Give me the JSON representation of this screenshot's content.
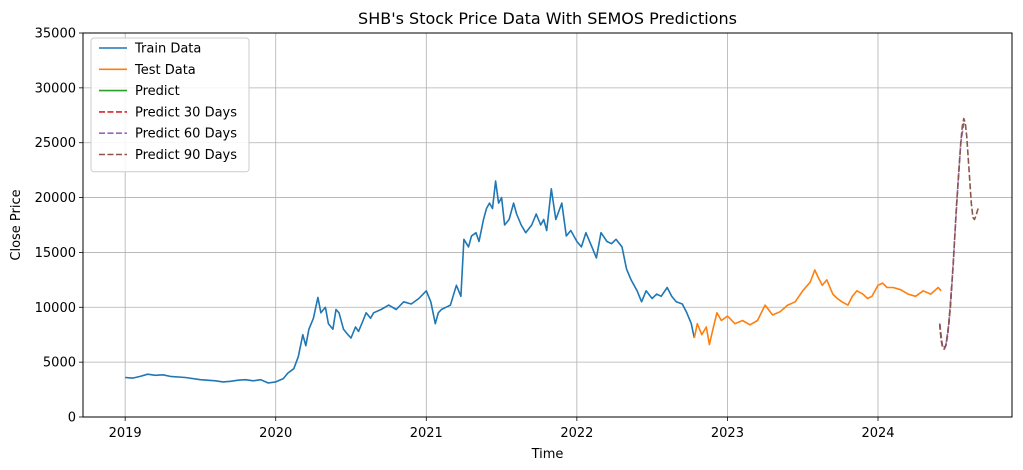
{
  "chart_data": {
    "type": "line",
    "title": "SHB's Stock Price Data With SEMOS Predictions",
    "xlabel": "Time",
    "ylabel": "Close Price",
    "xlim": [
      2018.72,
      2024.89
    ],
    "ylim": [
      0,
      35000
    ],
    "x_ticks": [
      2019,
      2020,
      2021,
      2022,
      2023,
      2024
    ],
    "x_tick_labels": [
      "2019",
      "2020",
      "2021",
      "2022",
      "2023",
      "2024"
    ],
    "y_ticks": [
      0,
      5000,
      10000,
      15000,
      20000,
      25000,
      30000,
      35000
    ],
    "y_tick_labels": [
      "0",
      "5000",
      "10000",
      "15000",
      "20000",
      "25000",
      "30000",
      "35000"
    ],
    "grid": true,
    "legend_position": "upper left",
    "series": [
      {
        "name": "Train Data",
        "color": "#1f77b4",
        "style": "solid",
        "x": [
          2019.0,
          2019.05,
          2019.1,
          2019.15,
          2019.2,
          2019.25,
          2019.3,
          2019.4,
          2019.5,
          2019.6,
          2019.65,
          2019.7,
          2019.75,
          2019.8,
          2019.85,
          2019.9,
          2019.95,
          2020.0,
          2020.05,
          2020.08,
          2020.12,
          2020.15,
          2020.18,
          2020.2,
          2020.22,
          2020.25,
          2020.28,
          2020.3,
          2020.33,
          2020.35,
          2020.38,
          2020.4,
          2020.42,
          2020.45,
          2020.48,
          2020.5,
          2020.53,
          2020.55,
          2020.58,
          2020.6,
          2020.63,
          2020.65,
          2020.7,
          2020.75,
          2020.8,
          2020.85,
          2020.9,
          2020.95,
          2021.0,
          2021.03,
          2021.06,
          2021.08,
          2021.1,
          2021.13,
          2021.16,
          2021.2,
          2021.23,
          2021.25,
          2021.28,
          2021.3,
          2021.33,
          2021.35,
          2021.38,
          2021.4,
          2021.42,
          2021.44,
          2021.46,
          2021.48,
          2021.5,
          2021.52,
          2021.55,
          2021.58,
          2021.6,
          2021.63,
          2021.66,
          2021.7,
          2021.73,
          2021.76,
          2021.78,
          2021.8,
          2021.83,
          2021.86,
          2021.9,
          2021.93,
          2021.96,
          2022.0,
          2022.03,
          2022.06,
          2022.1,
          2022.13,
          2022.16,
          2022.2,
          2022.23,
          2022.26,
          2022.3,
          2022.33,
          2022.36,
          2022.4,
          2022.43,
          2022.46,
          2022.5,
          2022.53,
          2022.56,
          2022.6,
          2022.63,
          2022.66,
          2022.7,
          2022.73,
          2022.76,
          2022.78
        ],
        "y": [
          3600,
          3550,
          3700,
          3900,
          3800,
          3850,
          3700,
          3600,
          3400,
          3300,
          3200,
          3250,
          3350,
          3400,
          3300,
          3400,
          3100,
          3200,
          3500,
          4000,
          4400,
          5500,
          7500,
          6500,
          8000,
          9000,
          10900,
          9500,
          10000,
          8500,
          8000,
          9800,
          9500,
          8000,
          7500,
          7200,
          8200,
          7800,
          8800,
          9500,
          9000,
          9500,
          9800,
          10200,
          9800,
          10500,
          10300,
          10800,
          11500,
          10500,
          8500,
          9500,
          9800,
          10000,
          10200,
          12000,
          11000,
          16200,
          15500,
          16500,
          16800,
          16000,
          18000,
          19000,
          19500,
          19000,
          21500,
          19500,
          20000,
          17500,
          18000,
          19500,
          18500,
          17500,
          16800,
          17500,
          18500,
          17500,
          18000,
          17000,
          20800,
          18000,
          19500,
          16500,
          17000,
          16000,
          15500,
          16800,
          15500,
          14500,
          16800,
          16000,
          15800,
          16200,
          15500,
          13500,
          12500,
          11500,
          10500,
          11500,
          10800,
          11200,
          11000,
          11800,
          11000,
          10500,
          10300,
          9500,
          8500,
          7200
        ]
      },
      {
        "name": "Test Data",
        "color": "#ff7f0e",
        "style": "solid",
        "x": [
          2022.78,
          2022.8,
          2022.83,
          2022.86,
          2022.88,
          2022.9,
          2022.93,
          2022.96,
          2023.0,
          2023.05,
          2023.1,
          2023.15,
          2023.2,
          2023.25,
          2023.3,
          2023.35,
          2023.4,
          2023.45,
          2023.5,
          2023.55,
          2023.58,
          2023.6,
          2023.63,
          2023.66,
          2023.7,
          2023.73,
          2023.76,
          2023.8,
          2023.83,
          2023.86,
          2023.9,
          2023.93,
          2023.96,
          2024.0,
          2024.03,
          2024.06,
          2024.1,
          2024.15,
          2024.2,
          2024.25,
          2024.3,
          2024.35,
          2024.4,
          2024.42
        ],
        "y": [
          7200,
          8500,
          7500,
          8200,
          6600,
          7800,
          9500,
          8800,
          9200,
          8500,
          8800,
          8400,
          8800,
          10200,
          9300,
          9600,
          10200,
          10500,
          11500,
          12300,
          13400,
          12800,
          12000,
          12500,
          11200,
          10800,
          10500,
          10200,
          11000,
          11500,
          11200,
          10800,
          11000,
          12000,
          12200,
          11800,
          11800,
          11600,
          11200,
          11000,
          11500,
          11200,
          11800,
          11500
        ]
      },
      {
        "name": "Predict",
        "color": "#2ca02c",
        "style": "solid",
        "x": [],
        "y": []
      },
      {
        "name": "Predict 30 Days",
        "color": "#d62728",
        "style": "dashed",
        "x": [
          2024.41,
          2024.42,
          2024.43,
          2024.44,
          2024.45,
          2024.46,
          2024.47,
          2024.48,
          2024.49
        ],
        "y": [
          8500,
          7000,
          6300,
          6200,
          6500,
          7300,
          8500,
          10000,
          12000
        ]
      },
      {
        "name": "Predict 60 Days",
        "color": "#9467bd",
        "style": "dashed",
        "x": [
          2024.41,
          2024.43,
          2024.45,
          2024.47,
          2024.49,
          2024.51,
          2024.53,
          2024.55,
          2024.57
        ],
        "y": [
          8500,
          6300,
          6500,
          8500,
          12000,
          16500,
          21000,
          25000,
          26800
        ]
      },
      {
        "name": "Predict 90 Days",
        "color": "#8c564b",
        "style": "dashed",
        "x": [
          2024.41,
          2024.42,
          2024.43,
          2024.44,
          2024.45,
          2024.46,
          2024.47,
          2024.48,
          2024.49,
          2024.5,
          2024.51,
          2024.52,
          2024.53,
          2024.54,
          2024.55,
          2024.56,
          2024.57,
          2024.58,
          2024.59,
          2024.6,
          2024.61,
          2024.62,
          2024.63,
          2024.64,
          2024.65,
          2024.66,
          2024.67
        ],
        "y": [
          8500,
          7000,
          6300,
          6200,
          6500,
          7300,
          8500,
          10000,
          12000,
          14000,
          16500,
          19000,
          21000,
          23000,
          25000,
          26500,
          27200,
          26800,
          25500,
          23500,
          21500,
          19500,
          18200,
          18000,
          18300,
          18800,
          19200
        ]
      }
    ]
  }
}
